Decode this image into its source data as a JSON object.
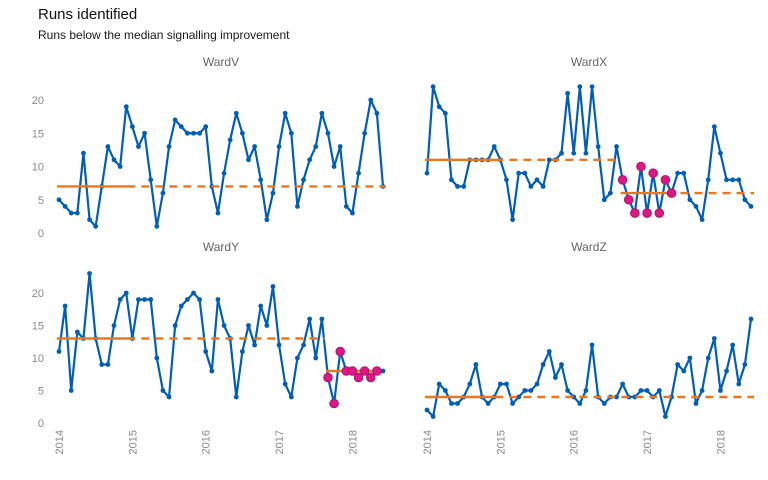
{
  "header": {
    "title": "Runs identified",
    "subtitle": "Runs below the median signalling improvement"
  },
  "chart_data": {
    "type": "line",
    "title": "Runs identified",
    "subtitle": "Runs below the median signalling improvement",
    "x_tick_labels": [
      "2014",
      "2015",
      "2016",
      "2017",
      "2018"
    ],
    "y_ticks": [
      0,
      5,
      10,
      15,
      20
    ],
    "ylim": [
      0,
      24
    ],
    "points_per_series": 54,
    "grid": "off",
    "colors": {
      "line": "#005EB8",
      "point": "#005EB8",
      "median": "#E87722",
      "run_highlight": "#DB1884",
      "axis_text": "#8a8a8a",
      "strip_text": "#666666"
    },
    "facets": [
      {
        "label": "WardV",
        "values": [
          5,
          4,
          3,
          3,
          12,
          2,
          1,
          7,
          13,
          11,
          10,
          19,
          16,
          13,
          15,
          8,
          1,
          6,
          13,
          17,
          16,
          15,
          15,
          15,
          16,
          7,
          3,
          9,
          14,
          18,
          15,
          11,
          13,
          8,
          2,
          6,
          13,
          18,
          15,
          4,
          8,
          11,
          13,
          18,
          15,
          10,
          13,
          4,
          3,
          9,
          15,
          20,
          18,
          7
        ],
        "medians": [
          {
            "value": 7,
            "solid_from": 0,
            "solid_to": 12,
            "dash_from": 12,
            "dash_to": 53
          }
        ],
        "runs": []
      },
      {
        "label": "WardX",
        "values": [
          9,
          22,
          19,
          18,
          8,
          7,
          7,
          11,
          11,
          11,
          11,
          13,
          11,
          8,
          2,
          9,
          9,
          7,
          8,
          7,
          11,
          11,
          12,
          21,
          12,
          22,
          12,
          22,
          13,
          5,
          6,
          13,
          8,
          5,
          3,
          10,
          3,
          9,
          3,
          8,
          6,
          9,
          9,
          5,
          4,
          2,
          8,
          16,
          12,
          8,
          8,
          8,
          5,
          4
        ],
        "medians": [
          {
            "value": 11,
            "solid_from": 0,
            "solid_to": 12,
            "dash_from": 12,
            "dash_to": 31
          },
          {
            "value": 6,
            "solid_from": 32,
            "solid_to": 40,
            "dash_from": 40,
            "dash_to": 53
          }
        ],
        "runs": [
          {
            "from": 32,
            "to": 40
          }
        ]
      },
      {
        "label": "WardY",
        "values": [
          11,
          18,
          5,
          14,
          13,
          23,
          13,
          9,
          9,
          15,
          19,
          20,
          13,
          19,
          19,
          19,
          10,
          5,
          4,
          15,
          18,
          19,
          20,
          19,
          11,
          8,
          19,
          15,
          13,
          4,
          11,
          15,
          12,
          18,
          15,
          21,
          12,
          6,
          4,
          10,
          12,
          16,
          10,
          16,
          7,
          3,
          11,
          8,
          8,
          7,
          8,
          7,
          8,
          8
        ],
        "medians": [
          {
            "value": 13,
            "solid_from": 0,
            "solid_to": 12,
            "dash_from": 12,
            "dash_to": 43
          },
          {
            "value": 8,
            "solid_from": 44,
            "solid_to": 52,
            "dash_from": 52,
            "dash_to": 53
          }
        ],
        "runs": [
          {
            "from": 44,
            "to": 52
          }
        ]
      },
      {
        "label": "WardZ",
        "values": [
          2,
          1,
          6,
          5,
          3,
          3,
          4,
          6,
          9,
          4,
          3,
          4,
          6,
          6,
          3,
          4,
          5,
          5,
          6,
          9,
          11,
          7,
          9,
          5,
          4,
          3,
          5,
          12,
          4,
          3,
          4,
          4,
          6,
          4,
          4,
          5,
          5,
          4,
          5,
          1,
          4,
          9,
          8,
          10,
          3,
          5,
          10,
          13,
          5,
          8,
          12,
          6,
          9,
          16
        ],
        "medians": [
          {
            "value": 4,
            "solid_from": 0,
            "solid_to": 12,
            "dash_from": 12,
            "dash_to": 53
          }
        ],
        "runs": []
      }
    ]
  }
}
